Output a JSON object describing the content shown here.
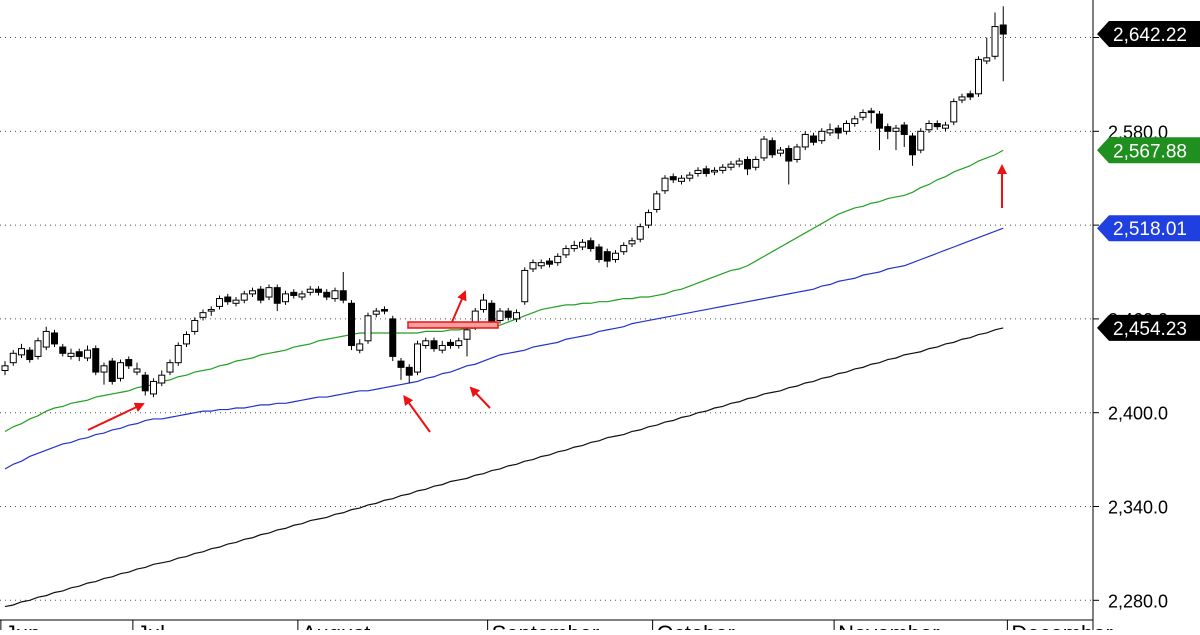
{
  "chart_data": {
    "type": "candlestick",
    "ylim": [
      2261,
      2664
    ],
    "yticks": [
      {
        "value": 2280,
        "label": "2,280.0"
      },
      {
        "value": 2340,
        "label": "2,340.0"
      },
      {
        "value": 2400,
        "label": "2,400.0"
      },
      {
        "value": 2460,
        "label": "2,460.0"
      },
      {
        "value": 2520,
        "label": "2,520.0"
      },
      {
        "value": 2580,
        "label": "2,580.0"
      },
      {
        "value": 2640,
        "label": "2,640.0"
      }
    ],
    "grid": true,
    "categories": [
      "Jun",
      null,
      null,
      null,
      null,
      null,
      null,
      null,
      null,
      null,
      null,
      null,
      null,
      null,
      null,
      null,
      "Jul",
      null,
      null,
      null,
      null,
      null,
      null,
      null,
      null,
      null,
      null,
      null,
      null,
      null,
      null,
      null,
      null,
      null,
      null,
      null,
      "August",
      null,
      null,
      null,
      null,
      null,
      null,
      null,
      null,
      null,
      null,
      null,
      null,
      null,
      null,
      null,
      null,
      null,
      null,
      null,
      null,
      null,
      null,
      "September",
      null,
      null,
      null,
      null,
      null,
      null,
      null,
      null,
      null,
      null,
      null,
      null,
      null,
      null,
      null,
      null,
      null,
      null,
      null,
      "October",
      null,
      null,
      null,
      null,
      null,
      null,
      null,
      null,
      null,
      null,
      null,
      null,
      null,
      null,
      null,
      null,
      null,
      null,
      null,
      null,
      null,
      "November",
      null,
      null,
      null,
      null,
      null,
      null,
      null,
      null,
      null,
      null,
      null,
      null,
      null,
      null,
      null,
      null,
      null,
      null,
      null,
      null,
      "December"
    ],
    "open": [
      2427,
      2432,
      2437,
      2440,
      2436,
      2442,
      2451,
      2442,
      2436,
      2439,
      2435,
      2441,
      2426,
      2433,
      2422,
      2434,
      2426,
      2424,
      2412,
      2419,
      2426,
      2432,
      2444,
      2452,
      2461,
      2465,
      2468,
      2474,
      2470,
      2472,
      2476,
      2479,
      2474,
      2480,
      2471,
      2477,
      2474,
      2477,
      2479,
      2477,
      2473,
      2478,
      2470,
      2440,
      2446,
      2463,
      2466,
      2460,
      2433,
      2429,
      2426,
      2443,
      2446,
      2440,
      2445,
      2443,
      2447,
      2455,
      2466,
      2470,
      2459,
      2465,
      2460,
      2471,
      2492,
      2494,
      2497,
      2496,
      2501,
      2505,
      2506,
      2510,
      2506,
      2503,
      2498,
      2503,
      2508,
      2511,
      2520,
      2530,
      2542,
      2551,
      2548,
      2550,
      2553,
      2556,
      2554,
      2555,
      2557,
      2559,
      2562,
      2557,
      2563,
      2574,
      2566,
      2569,
      2562,
      2570,
      2577,
      2574,
      2579,
      2582,
      2580,
      2585,
      2589,
      2593,
      2591,
      2583,
      2580,
      2584,
      2577,
      2568,
      2581,
      2585,
      2582,
      2586,
      2600,
      2604,
      2604,
      2625,
      2628,
      2648,
      null
    ],
    "high": [
      2433,
      2440,
      2444,
      2442,
      2448,
      2455,
      2453,
      2444,
      2441,
      2441,
      2443,
      2443,
      2432,
      2435,
      2434,
      2436,
      2432,
      2426,
      2422,
      2427,
      2434,
      2445,
      2452,
      2461,
      2466,
      2468,
      2475,
      2476,
      2474,
      2478,
      2480,
      2481,
      2482,
      2482,
      2478,
      2479,
      2478,
      2481,
      2481,
      2479,
      2480,
      2490,
      2472,
      2447,
      2464,
      2467,
      2468,
      2462,
      2435,
      2431,
      2446,
      2448,
      2448,
      2446,
      2447,
      2448,
      2455,
      2467,
      2476,
      2472,
      2467,
      2467,
      2466,
      2493,
      2498,
      2498,
      2499,
      2502,
      2507,
      2510,
      2511,
      2512,
      2508,
      2505,
      2504,
      2509,
      2512,
      2521,
      2530,
      2542,
      2552,
      2553,
      2552,
      2554,
      2557,
      2558,
      2557,
      2559,
      2561,
      2563,
      2564,
      2564,
      2577,
      2576,
      2570,
      2571,
      2572,
      2580,
      2579,
      2582,
      2585,
      2584,
      2587,
      2590,
      2594,
      2595,
      2593,
      2585,
      2584,
      2586,
      2579,
      2582,
      2587,
      2587,
      2586,
      2601,
      2604,
      2606,
      2628,
      2640,
      2656,
      2660,
      null
    ],
    "low": [
      2424,
      2430,
      2435,
      2432,
      2434,
      2440,
      2442,
      2436,
      2434,
      2433,
      2433,
      2424,
      2418,
      2418,
      2420,
      2428,
      2424,
      2411,
      2410,
      2417,
      2424,
      2430,
      2442,
      2450,
      2459,
      2462,
      2466,
      2469,
      2468,
      2470,
      2474,
      2470,
      2472,
      2465,
      2469,
      2473,
      2472,
      2475,
      2475,
      2472,
      2471,
      2470,
      2440,
      2438,
      2444,
      2461,
      2463,
      2433,
      2421,
      2419,
      2424,
      2441,
      2439,
      2438,
      2441,
      2441,
      2436,
      2453,
      2464,
      2456,
      2457,
      2459,
      2458,
      2469,
      2490,
      2492,
      2493,
      2494,
      2499,
      2503,
      2504,
      2503,
      2496,
      2493,
      2496,
      2501,
      2506,
      2509,
      2518,
      2528,
      2540,
      2547,
      2546,
      2548,
      2551,
      2551,
      2552,
      2553,
      2555,
      2557,
      2552,
      2555,
      2561,
      2563,
      2564,
      2546,
      2560,
      2568,
      2571,
      2572,
      2577,
      2575,
      2578,
      2583,
      2587,
      2585,
      2568,
      2575,
      2568,
      2570,
      2558,
      2566,
      2579,
      2581,
      2580,
      2584,
      2598,
      2600,
      2602,
      2623,
      2626,
      2612,
      null
    ],
    "close": [
      2430,
      2438,
      2441,
      2434,
      2446,
      2452,
      2444,
      2438,
      2438,
      2436,
      2440,
      2426,
      2430,
      2420,
      2432,
      2430,
      2428,
      2414,
      2420,
      2424,
      2432,
      2443,
      2450,
      2459,
      2464,
      2466,
      2473,
      2471,
      2472,
      2476,
      2478,
      2472,
      2480,
      2470,
      2476,
      2475,
      2476,
      2479,
      2477,
      2474,
      2478,
      2472,
      2443,
      2444,
      2462,
      2465,
      2465,
      2436,
      2429,
      2424,
      2444,
      2446,
      2441,
      2443,
      2443,
      2446,
      2453,
      2465,
      2472,
      2458,
      2465,
      2461,
      2464,
      2491,
      2496,
      2496,
      2495,
      2500,
      2505,
      2507,
      2509,
      2505,
      2498,
      2497,
      2502,
      2507,
      2510,
      2519,
      2528,
      2540,
      2550,
      2549,
      2550,
      2552,
      2555,
      2553,
      2555,
      2557,
      2559,
      2561,
      2556,
      2562,
      2575,
      2565,
      2568,
      2561,
      2570,
      2578,
      2573,
      2580,
      2581,
      2579,
      2585,
      2588,
      2592,
      2592,
      2582,
      2580,
      2582,
      2578,
      2565,
      2580,
      2585,
      2583,
      2584,
      2599,
      2602,
      2602,
      2626,
      2627,
      2647,
      2642.22,
      null
    ],
    "up_color": "#ffffff",
    "down_color": "#000000",
    "series": [
      {
        "type": "line",
        "color": "#22a022",
        "values": [
          2388,
          2391,
          2393,
          2396,
          2398,
          2401,
          2403,
          2404,
          2406,
          2407,
          2408,
          2410,
          2411,
          2412,
          2413,
          2414,
          2416,
          2417,
          2418,
          2420,
          2421,
          2423,
          2424,
          2426,
          2427,
          2428,
          2430,
          2431,
          2433,
          2434,
          2435,
          2437,
          2438,
          2439,
          2440,
          2442,
          2443,
          2444,
          2446,
          2447,
          2448,
          2449,
          2450,
          2451,
          2451,
          2451,
          2451,
          2451,
          2451,
          2451,
          2451,
          2452,
          2452,
          2452,
          2453,
          2453,
          2454,
          2454,
          2455,
          2455,
          2456,
          2458,
          2460,
          2462,
          2464,
          2466,
          2467,
          2468,
          2469,
          2469,
          2470,
          2470,
          2471,
          2471,
          2472,
          2473,
          2473,
          2474,
          2474,
          2475,
          2476,
          2478,
          2479,
          2481,
          2483,
          2485,
          2487,
          2489,
          2491,
          2492,
          2494,
          2497,
          2500,
          2503,
          2506,
          2509,
          2512,
          2515,
          2518,
          2521,
          2524,
          2527,
          2529,
          2531,
          2532,
          2534,
          2535,
          2537,
          2538,
          2539,
          2541,
          2544,
          2546,
          2549,
          2551,
          2554,
          2556,
          2558,
          2561,
          2563,
          2565,
          2567.88,
          null
        ]
      },
      {
        "type": "line",
        "color": "#2233cc",
        "values": [
          2364,
          2367,
          2369,
          2372,
          2374,
          2376,
          2378,
          2380,
          2381,
          2383,
          2384,
          2386,
          2387,
          2389,
          2390,
          2392,
          2393,
          2395,
          2396,
          2396,
          2397,
          2398,
          2399,
          2400,
          2401,
          2401,
          2402,
          2402,
          2403,
          2403,
          2404,
          2405,
          2405,
          2406,
          2406,
          2407,
          2408,
          2409,
          2410,
          2410,
          2411,
          2412,
          2413,
          2414,
          2414,
          2415,
          2416,
          2417,
          2418,
          2419,
          2420,
          2422,
          2423,
          2425,
          2426,
          2428,
          2430,
          2431,
          2433,
          2435,
          2437,
          2438,
          2439,
          2440,
          2442,
          2443,
          2444,
          2445,
          2447,
          2448,
          2449,
          2450,
          2452,
          2453,
          2454,
          2455,
          2457,
          2458,
          2459,
          2460,
          2461,
          2462,
          2463,
          2464,
          2465,
          2466,
          2467,
          2468,
          2469,
          2470,
          2471,
          2472,
          2473,
          2474,
          2475,
          2476,
          2477,
          2478,
          2479,
          2481,
          2482,
          2484,
          2485,
          2486,
          2488,
          2489,
          2490,
          2492,
          2493,
          2494,
          2496,
          2498,
          2500,
          2502,
          2504,
          2506,
          2508,
          2510,
          2512,
          2514,
          2516,
          2518.01,
          null
        ]
      },
      {
        "type": "line",
        "color": "#111111",
        "values": [
          2276,
          2277,
          2279,
          2280,
          2282,
          2283,
          2285,
          2286,
          2288,
          2289,
          2291,
          2292,
          2294,
          2295,
          2297,
          2298,
          2300,
          2301,
          2303,
          2304,
          2305,
          2307,
          2308,
          2310,
          2311,
          2313,
          2314,
          2316,
          2317,
          2319,
          2320,
          2322,
          2323,
          2325,
          2326,
          2328,
          2329,
          2331,
          2332,
          2333,
          2335,
          2336,
          2338,
          2339,
          2341,
          2342,
          2344,
          2345,
          2347,
          2348,
          2350,
          2351,
          2353,
          2354,
          2356,
          2357,
          2358,
          2360,
          2361,
          2363,
          2364,
          2366,
          2367,
          2369,
          2370,
          2372,
          2373,
          2375,
          2376,
          2378,
          2379,
          2381,
          2382,
          2384,
          2385,
          2386,
          2388,
          2389,
          2391,
          2392,
          2394,
          2395,
          2397,
          2398,
          2400,
          2401,
          2403,
          2404,
          2406,
          2407,
          2409,
          2410,
          2412,
          2413,
          2414,
          2416,
          2417,
          2419,
          2420,
          2422,
          2423,
          2425,
          2426,
          2428,
          2429,
          2431,
          2432,
          2434,
          2435,
          2437,
          2438,
          2439,
          2441,
          2442,
          2444,
          2445,
          2447,
          2448,
          2450,
          2451,
          2453,
          2454.23,
          null
        ]
      }
    ],
    "price_tags": [
      {
        "value": 2642.22,
        "label": "2,642.22",
        "color": "#000000"
      },
      {
        "value": 2567.88,
        "label": "2,567.88",
        "color": "#1f8f1f"
      },
      {
        "value": 2518.01,
        "label": "2,518.01",
        "color": "#1f3fe0"
      },
      {
        "value": 2454.23,
        "label": "2,454.23",
        "color": "#000000"
      }
    ]
  }
}
